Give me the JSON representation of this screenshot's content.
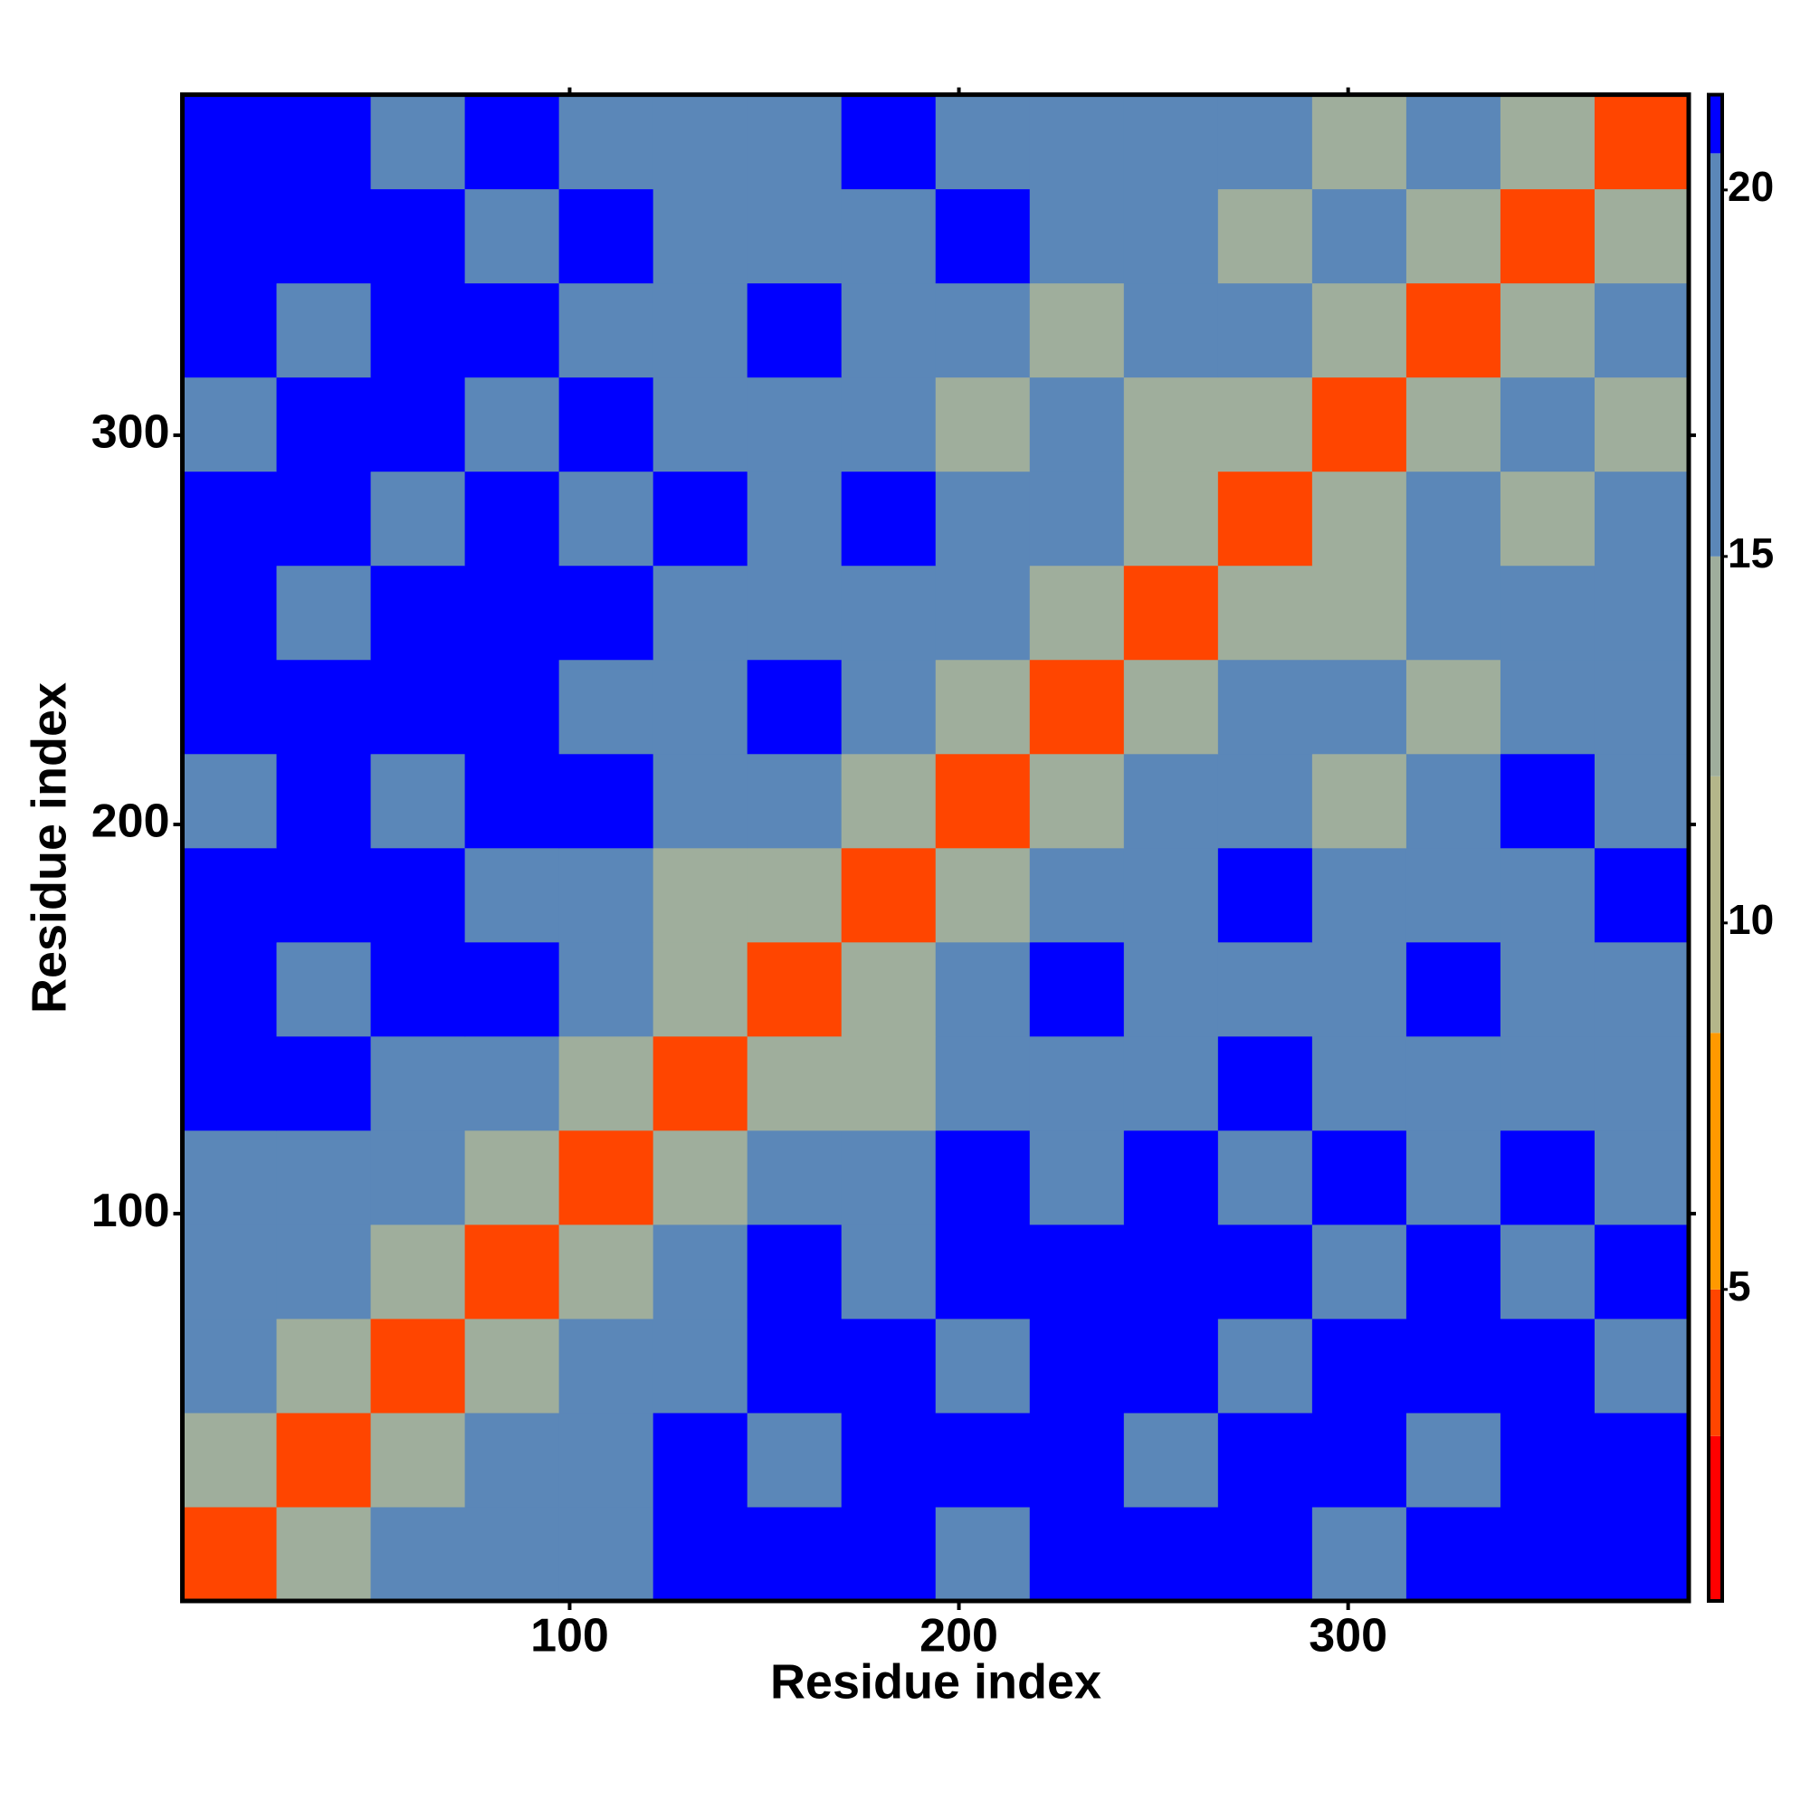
{
  "chart_data": {
    "type": "heatmap",
    "x_label": "Residue index",
    "y_label": "Residue index",
    "xlim": [
      0.5,
      387.5
    ],
    "ylim": [
      0.5,
      387.5
    ],
    "xticks": [
      100,
      200,
      300
    ],
    "yticks": [
      100,
      200,
      300
    ],
    "clim": [
      0.75,
      21.3
    ],
    "cticks": [
      5,
      10,
      15,
      20
    ],
    "colorscale": [
      {
        "max": 3,
        "color": "#ff0000"
      },
      {
        "max": 5,
        "color": "#ff4500"
      },
      {
        "max": 8.5,
        "color": "#ff9900"
      },
      {
        "max": 12,
        "color": "#b4b68a"
      },
      {
        "max": 15,
        "color": "#9fae9c"
      },
      {
        "max": 20.5,
        "color": "#5b87b8"
      },
      {
        "max": 21.3,
        "color": "#0000ff"
      }
    ],
    "matrix": [
      [
        4,
        13,
        16,
        16,
        18,
        21,
        21,
        21,
        18,
        21,
        21,
        21,
        18,
        21,
        21,
        21
      ],
      [
        13,
        4,
        13,
        16,
        16,
        21,
        18,
        21,
        21,
        21,
        18,
        21,
        21,
        18,
        21,
        21
      ],
      [
        16,
        13,
        4,
        13,
        16,
        18,
        21,
        21,
        18,
        21,
        21,
        18,
        21,
        21,
        21,
        18
      ],
      [
        16,
        16,
        13,
        4,
        13,
        18,
        21,
        18,
        21,
        21,
        21,
        21,
        18,
        21,
        18,
        21
      ],
      [
        18,
        16,
        16,
        13,
        4,
        13,
        18,
        18,
        21,
        18,
        21,
        18,
        21,
        18,
        21,
        18
      ],
      [
        21,
        21,
        18,
        18,
        13,
        4,
        13,
        14,
        18,
        18,
        18,
        21,
        18,
        18,
        18,
        18
      ],
      [
        21,
        18,
        21,
        21,
        18,
        13,
        4,
        13,
        18,
        21,
        18,
        18,
        18,
        21,
        18,
        18
      ],
      [
        21,
        21,
        21,
        18,
        18,
        14,
        13,
        4,
        13,
        18,
        18,
        21,
        18,
        18,
        18,
        21
      ],
      [
        18,
        21,
        18,
        21,
        21,
        18,
        18,
        13,
        4,
        13,
        18,
        18,
        14,
        18,
        21,
        18
      ],
      [
        21,
        21,
        21,
        21,
        18,
        18,
        21,
        18,
        13,
        4,
        13,
        18,
        18,
        14,
        18,
        18
      ],
      [
        21,
        18,
        21,
        21,
        21,
        18,
        18,
        18,
        18,
        13,
        4,
        13,
        14,
        18,
        18,
        18
      ],
      [
        21,
        21,
        18,
        21,
        18,
        21,
        18,
        21,
        18,
        18,
        13,
        4,
        13,
        18,
        14,
        18
      ],
      [
        18,
        21,
        21,
        18,
        21,
        18,
        18,
        18,
        14,
        18,
        14,
        13,
        4,
        13,
        18,
        14
      ],
      [
        21,
        18,
        21,
        21,
        18,
        18,
        21,
        18,
        18,
        14,
        18,
        18,
        13,
        4,
        13,
        18
      ],
      [
        21,
        21,
        21,
        18,
        21,
        18,
        18,
        18,
        21,
        18,
        18,
        14,
        18,
        13,
        4,
        13
      ],
      [
        21,
        21,
        18,
        21,
        18,
        18,
        18,
        21,
        18,
        18,
        18,
        18,
        14,
        18,
        13,
        4
      ]
    ]
  }
}
